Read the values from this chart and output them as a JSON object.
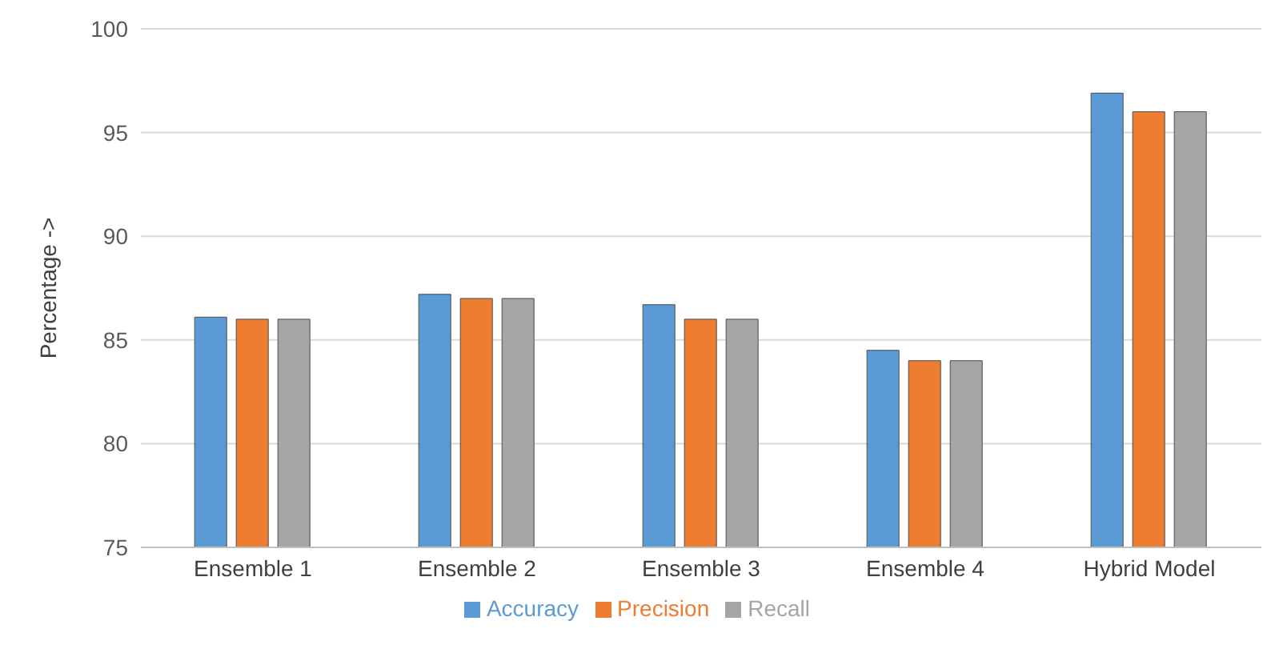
{
  "chart_data": {
    "type": "bar",
    "ylabel": "Percentage ->",
    "categories": [
      "Ensemble 1",
      "Ensemble 2",
      "Ensemble 3",
      "Ensemble 4",
      "Hybrid Model"
    ],
    "series": [
      {
        "name": "Accuracy",
        "color": "#5b9bd5",
        "values": [
          86.1,
          87.2,
          86.7,
          84.5,
          96.9
        ]
      },
      {
        "name": "Precision",
        "color": "#ed7d31",
        "values": [
          86,
          87,
          86,
          84,
          96
        ]
      },
      {
        "name": "Recall",
        "color": "#a5a5a5",
        "values": [
          86,
          87,
          86,
          84,
          96
        ]
      }
    ],
    "ylim": [
      75,
      100
    ],
    "yticks": [
      75,
      80,
      85,
      90,
      95,
      100
    ],
    "grid": "y",
    "legend": "bottom"
  }
}
